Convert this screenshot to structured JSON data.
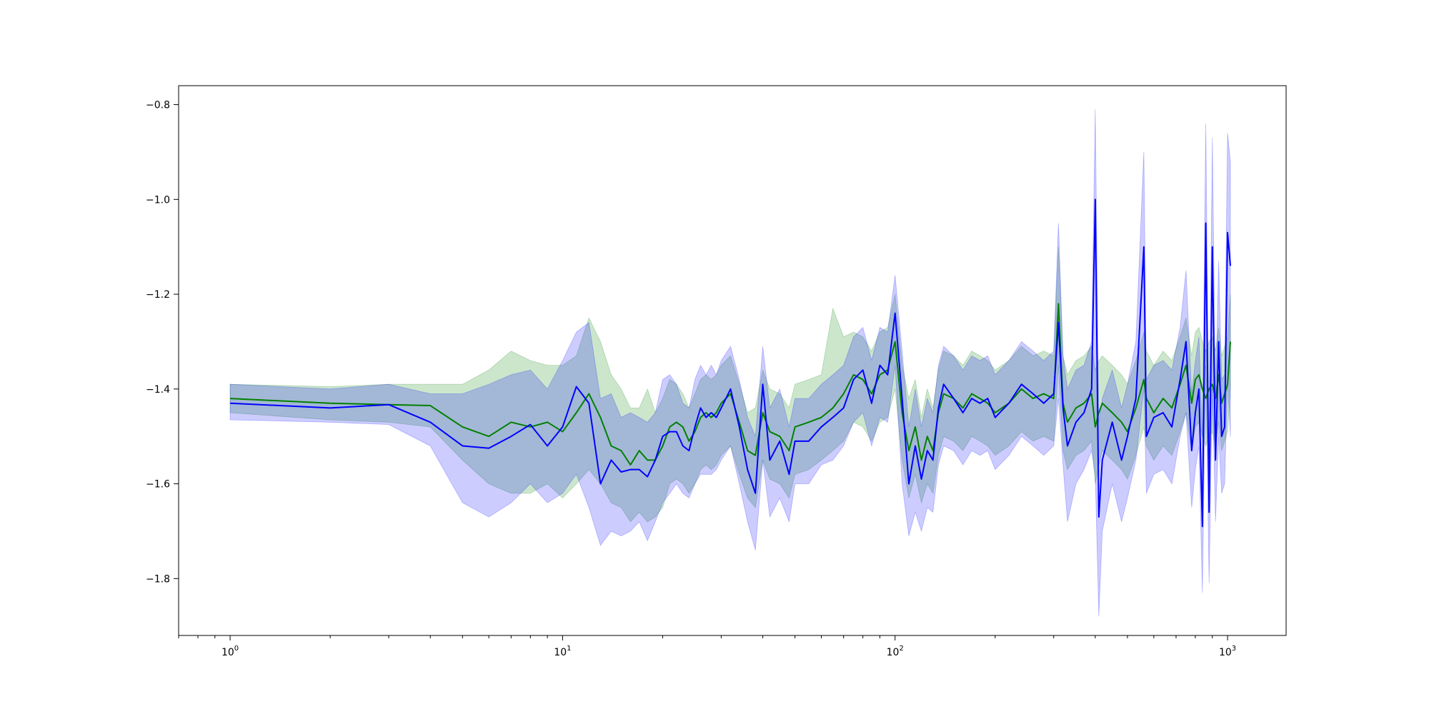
{
  "chart_data": {
    "type": "line",
    "title": "",
    "xlabel": "",
    "ylabel": "",
    "xscale": "log",
    "xlim": [
      0.7,
      1500
    ],
    "ylim": [
      -1.92,
      -0.76
    ],
    "grid": false,
    "legend": "none",
    "x_ticks": [
      {
        "base": "10",
        "exp": "0",
        "value": 1
      },
      {
        "base": "10",
        "exp": "1",
        "value": 10
      },
      {
        "base": "10",
        "exp": "2",
        "value": 100
      },
      {
        "base": "10",
        "exp": "3",
        "value": 1000
      }
    ],
    "y_ticks": [
      {
        "label": "−0.8",
        "value": -0.8
      },
      {
        "label": "−1.0",
        "value": -1.0
      },
      {
        "label": "−1.2",
        "value": -1.2
      },
      {
        "label": "−1.4",
        "value": -1.4
      },
      {
        "label": "−1.6",
        "value": -1.6
      },
      {
        "label": "−1.8",
        "value": -1.8
      }
    ],
    "series": [
      {
        "color": "#008000",
        "band_color": "#008000",
        "band_opacity": 0.2,
        "x": [
          1,
          2,
          3,
          4,
          5,
          6,
          7,
          8,
          9,
          10,
          11,
          12,
          13,
          14,
          15,
          16,
          17,
          18,
          19,
          20,
          21,
          22,
          23,
          24,
          25,
          26,
          27,
          28,
          29,
          30,
          32,
          34,
          36,
          38,
          40,
          42,
          45,
          48,
          50,
          55,
          60,
          65,
          70,
          75,
          80,
          85,
          90,
          95,
          100,
          105,
          110,
          115,
          120,
          125,
          130,
          135,
          140,
          150,
          160,
          170,
          180,
          190,
          200,
          220,
          240,
          260,
          280,
          300,
          310,
          320,
          330,
          350,
          370,
          390,
          400,
          410,
          420,
          450,
          480,
          500,
          530,
          560,
          570,
          600,
          640,
          680,
          720,
          750,
          780,
          800,
          820,
          840,
          860,
          880,
          900,
          920,
          940,
          960,
          980,
          1000,
          1020
        ],
        "y": [
          -1.42,
          -1.43,
          -1.433,
          -1.435,
          -1.48,
          -1.5,
          -1.47,
          -1.48,
          -1.47,
          -1.49,
          -1.45,
          -1.41,
          -1.46,
          -1.52,
          -1.53,
          -1.56,
          -1.53,
          -1.55,
          -1.55,
          -1.52,
          -1.48,
          -1.47,
          -1.48,
          -1.51,
          -1.49,
          -1.46,
          -1.45,
          -1.46,
          -1.45,
          -1.43,
          -1.41,
          -1.47,
          -1.53,
          -1.54,
          -1.45,
          -1.49,
          -1.5,
          -1.53,
          -1.48,
          -1.47,
          -1.46,
          -1.44,
          -1.41,
          -1.37,
          -1.38,
          -1.41,
          -1.37,
          -1.36,
          -1.3,
          -1.45,
          -1.53,
          -1.48,
          -1.55,
          -1.5,
          -1.53,
          -1.45,
          -1.41,
          -1.42,
          -1.44,
          -1.41,
          -1.42,
          -1.43,
          -1.45,
          -1.43,
          -1.4,
          -1.42,
          -1.41,
          -1.42,
          -1.22,
          -1.43,
          -1.47,
          -1.44,
          -1.43,
          -1.41,
          -1.48,
          -1.45,
          -1.43,
          -1.45,
          -1.47,
          -1.49,
          -1.44,
          -1.38,
          -1.42,
          -1.45,
          -1.42,
          -1.44,
          -1.39,
          -1.35,
          -1.43,
          -1.38,
          -1.37,
          -1.4,
          -1.42,
          -1.4,
          -1.39,
          -1.42,
          -1.37,
          -1.43,
          -1.41,
          -1.39,
          -1.3
        ],
        "lower": [
          -1.45,
          -1.465,
          -1.47,
          -1.48,
          -1.55,
          -1.6,
          -1.62,
          -1.62,
          -1.6,
          -1.63,
          -1.6,
          -1.57,
          -1.6,
          -1.64,
          -1.65,
          -1.68,
          -1.66,
          -1.68,
          -1.67,
          -1.65,
          -1.6,
          -1.59,
          -1.6,
          -1.62,
          -1.6,
          -1.57,
          -1.56,
          -1.57,
          -1.56,
          -1.54,
          -1.52,
          -1.58,
          -1.63,
          -1.65,
          -1.55,
          -1.59,
          -1.6,
          -1.63,
          -1.58,
          -1.57,
          -1.55,
          -1.53,
          -1.51,
          -1.47,
          -1.48,
          -1.51,
          -1.47,
          -1.46,
          -1.4,
          -1.55,
          -1.63,
          -1.58,
          -1.64,
          -1.6,
          -1.62,
          -1.54,
          -1.5,
          -1.51,
          -1.53,
          -1.5,
          -1.51,
          -1.52,
          -1.54,
          -1.52,
          -1.49,
          -1.51,
          -1.5,
          -1.51,
          -1.35,
          -1.53,
          -1.57,
          -1.54,
          -1.53,
          -1.51,
          -1.6,
          -1.56,
          -1.53,
          -1.55,
          -1.57,
          -1.59,
          -1.54,
          -1.48,
          -1.52,
          -1.55,
          -1.52,
          -1.54,
          -1.49,
          -1.45,
          -1.53,
          -1.48,
          -1.47,
          -1.5,
          -1.52,
          -1.5,
          -1.49,
          -1.52,
          -1.47,
          -1.53,
          -1.51,
          -1.49,
          -1.4
        ],
        "upper": [
          -1.39,
          -1.395,
          -1.39,
          -1.39,
          -1.39,
          -1.36,
          -1.32,
          -1.34,
          -1.35,
          -1.35,
          -1.33,
          -1.25,
          -1.3,
          -1.37,
          -1.4,
          -1.44,
          -1.44,
          -1.4,
          -1.45,
          -1.42,
          -1.38,
          -1.39,
          -1.41,
          -1.44,
          -1.41,
          -1.38,
          -1.37,
          -1.38,
          -1.37,
          -1.35,
          -1.33,
          -1.39,
          -1.45,
          -1.44,
          -1.36,
          -1.4,
          -1.41,
          -1.44,
          -1.39,
          -1.38,
          -1.37,
          -1.23,
          -1.29,
          -1.28,
          -1.29,
          -1.32,
          -1.28,
          -1.27,
          -1.2,
          -1.35,
          -1.42,
          -1.38,
          -1.46,
          -1.4,
          -1.44,
          -1.36,
          -1.32,
          -1.33,
          -1.35,
          -1.32,
          -1.33,
          -1.34,
          -1.36,
          -1.34,
          -1.31,
          -1.33,
          -1.32,
          -1.33,
          -1.1,
          -1.33,
          -1.37,
          -1.34,
          -1.33,
          -1.31,
          -1.36,
          -1.34,
          -1.33,
          -1.35,
          -1.37,
          -1.39,
          -1.34,
          -1.28,
          -1.32,
          -1.35,
          -1.32,
          -1.34,
          -1.29,
          -1.25,
          -1.33,
          -1.28,
          -1.27,
          -1.3,
          -1.32,
          -1.3,
          -1.29,
          -1.32,
          -1.27,
          -1.33,
          -1.31,
          -1.29,
          -1.2
        ]
      },
      {
        "color": "#0000ff",
        "band_color": "#0000ff",
        "band_opacity": 0.2,
        "x": [
          1,
          2,
          3,
          4,
          5,
          6,
          7,
          8,
          9,
          10,
          11,
          12,
          13,
          14,
          15,
          16,
          17,
          18,
          19,
          20,
          21,
          22,
          23,
          24,
          25,
          26,
          27,
          28,
          29,
          30,
          32,
          34,
          36,
          38,
          40,
          42,
          45,
          48,
          50,
          55,
          60,
          65,
          70,
          75,
          80,
          85,
          90,
          95,
          100,
          105,
          110,
          115,
          120,
          125,
          130,
          135,
          140,
          150,
          160,
          170,
          180,
          190,
          200,
          220,
          240,
          260,
          280,
          300,
          310,
          320,
          330,
          350,
          370,
          390,
          400,
          410,
          420,
          450,
          480,
          500,
          530,
          560,
          570,
          600,
          640,
          680,
          720,
          750,
          780,
          800,
          820,
          840,
          860,
          880,
          900,
          920,
          940,
          960,
          980,
          1000,
          1020
        ],
        "y": [
          -1.43,
          -1.44,
          -1.433,
          -1.47,
          -1.52,
          -1.525,
          -1.5,
          -1.475,
          -1.52,
          -1.48,
          -1.395,
          -1.43,
          -1.6,
          -1.55,
          -1.575,
          -1.57,
          -1.57,
          -1.585,
          -1.55,
          -1.5,
          -1.49,
          -1.49,
          -1.52,
          -1.53,
          -1.48,
          -1.44,
          -1.46,
          -1.45,
          -1.46,
          -1.44,
          -1.4,
          -1.48,
          -1.57,
          -1.62,
          -1.39,
          -1.55,
          -1.51,
          -1.58,
          -1.51,
          -1.51,
          -1.48,
          -1.46,
          -1.44,
          -1.38,
          -1.36,
          -1.43,
          -1.35,
          -1.37,
          -1.24,
          -1.42,
          -1.6,
          -1.52,
          -1.59,
          -1.53,
          -1.55,
          -1.44,
          -1.39,
          -1.42,
          -1.45,
          -1.42,
          -1.43,
          -1.42,
          -1.46,
          -1.43,
          -1.39,
          -1.41,
          -1.43,
          -1.41,
          -1.26,
          -1.44,
          -1.52,
          -1.47,
          -1.45,
          -1.4,
          -1.0,
          -1.67,
          -1.55,
          -1.47,
          -1.55,
          -1.5,
          -1.42,
          -1.1,
          -1.5,
          -1.46,
          -1.45,
          -1.48,
          -1.38,
          -1.3,
          -1.53,
          -1.45,
          -1.4,
          -1.69,
          -1.05,
          -1.66,
          -1.1,
          -1.55,
          -1.3,
          -1.5,
          -1.48,
          -1.07,
          -1.14
        ],
        "lower": [
          -1.465,
          -1.47,
          -1.475,
          -1.52,
          -1.64,
          -1.67,
          -1.64,
          -1.6,
          -1.64,
          -1.62,
          -1.58,
          -1.65,
          -1.73,
          -1.7,
          -1.71,
          -1.7,
          -1.68,
          -1.72,
          -1.68,
          -1.64,
          -1.62,
          -1.6,
          -1.62,
          -1.63,
          -1.6,
          -1.58,
          -1.58,
          -1.58,
          -1.57,
          -1.55,
          -1.52,
          -1.6,
          -1.68,
          -1.74,
          -1.55,
          -1.67,
          -1.63,
          -1.68,
          -1.6,
          -1.6,
          -1.56,
          -1.55,
          -1.52,
          -1.47,
          -1.45,
          -1.52,
          -1.46,
          -1.47,
          -1.35,
          -1.6,
          -1.71,
          -1.66,
          -1.7,
          -1.65,
          -1.66,
          -1.56,
          -1.52,
          -1.53,
          -1.56,
          -1.53,
          -1.54,
          -1.53,
          -1.57,
          -1.54,
          -1.5,
          -1.52,
          -1.54,
          -1.52,
          -1.42,
          -1.56,
          -1.68,
          -1.6,
          -1.57,
          -1.53,
          -1.58,
          -1.88,
          -1.7,
          -1.6,
          -1.68,
          -1.63,
          -1.55,
          -1.4,
          -1.62,
          -1.58,
          -1.57,
          -1.6,
          -1.5,
          -1.45,
          -1.65,
          -1.57,
          -1.52,
          -1.83,
          -1.35,
          -1.81,
          -1.4,
          -1.68,
          -1.5,
          -1.62,
          -1.6,
          -1.38,
          -1.5
        ],
        "upper": [
          -1.39,
          -1.4,
          -1.39,
          -1.41,
          -1.41,
          -1.39,
          -1.37,
          -1.36,
          -1.4,
          -1.34,
          -1.28,
          -1.26,
          -1.42,
          -1.41,
          -1.46,
          -1.45,
          -1.46,
          -1.47,
          -1.45,
          -1.38,
          -1.37,
          -1.39,
          -1.43,
          -1.44,
          -1.38,
          -1.35,
          -1.37,
          -1.35,
          -1.37,
          -1.34,
          -1.31,
          -1.38,
          -1.46,
          -1.5,
          -1.31,
          -1.44,
          -1.4,
          -1.48,
          -1.42,
          -1.42,
          -1.39,
          -1.37,
          -1.35,
          -1.29,
          -1.27,
          -1.34,
          -1.27,
          -1.28,
          -1.16,
          -1.32,
          -1.48,
          -1.4,
          -1.48,
          -1.42,
          -1.45,
          -1.35,
          -1.31,
          -1.33,
          -1.36,
          -1.33,
          -1.34,
          -1.33,
          -1.37,
          -1.34,
          -1.3,
          -1.32,
          -1.34,
          -1.32,
          -1.05,
          -1.33,
          -1.4,
          -1.36,
          -1.35,
          -1.3,
          -0.81,
          -1.47,
          -1.42,
          -1.36,
          -1.44,
          -1.39,
          -1.3,
          -0.9,
          -1.38,
          -1.35,
          -1.34,
          -1.36,
          -1.27,
          -1.15,
          -1.41,
          -1.34,
          -1.29,
          -1.5,
          -0.84,
          -1.52,
          -0.87,
          -1.43,
          -1.13,
          -1.38,
          -1.37,
          -0.86,
          -0.92
        ]
      }
    ]
  }
}
